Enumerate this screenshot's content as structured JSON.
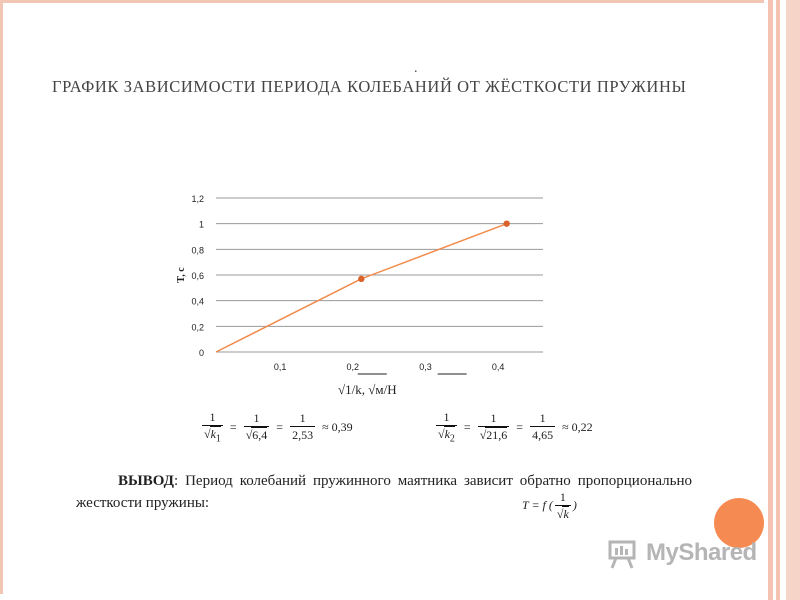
{
  "slide": {
    "title": "График зависимости периода колебаний от жёсткости пружины",
    "dot": "."
  },
  "chart_data": {
    "type": "line",
    "x": [
      0.0,
      0.2,
      0.4
    ],
    "y": [
      0.0,
      0.57,
      1.0
    ],
    "xticks": [
      "0,1",
      "0,2",
      "0,3",
      "0,4"
    ],
    "yticks": [
      "0",
      "0,2",
      "0,4",
      "0,6",
      "0,8",
      "1",
      "1,2"
    ],
    "ylabel": "T, c",
    "xlabel": "√1/k,   √м/Н",
    "xlim": [
      0,
      0.45
    ],
    "ylim": [
      0,
      1.2
    ],
    "grid": true,
    "line_color": "#f28b4a",
    "marker_color": "#d9622b"
  },
  "formulas": {
    "f1": {
      "n1": "1",
      "k": "k",
      "sub": "1",
      "n2": "1",
      "r2": "6,4",
      "n3": "1",
      "d3": "2,53",
      "result": "≈ 0,39"
    },
    "f2": {
      "n1": "1",
      "k": "k",
      "sub": "2",
      "n2": "1",
      "r2": "21,6",
      "n3": "1",
      "d3": "4,65",
      "result": "≈ 0,22"
    }
  },
  "conclusion": {
    "lead": "ВЫВОД",
    "text": ":  Период колебаний пружинного маятника зависит обратно пропорционально жесткости пружины:",
    "formula_lhs": "T = f (",
    "formula_num": "1",
    "formula_k": "k",
    "formula_rhs": ")"
  },
  "logo": {
    "text": "MyShared"
  }
}
